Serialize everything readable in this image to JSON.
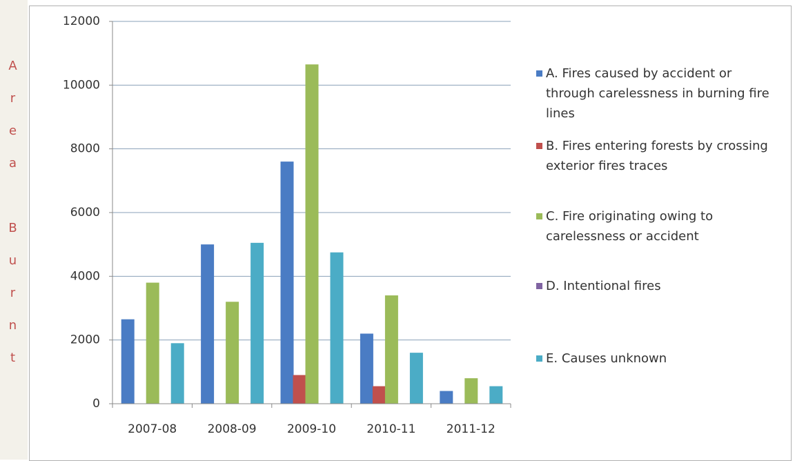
{
  "chart_data": {
    "type": "bar",
    "y_label": "Area Burnt",
    "categories": [
      "2007-08",
      "2008-09",
      "2009-10",
      "2010-11",
      "2011-12"
    ],
    "series": [
      {
        "name": "A. Fires caused by  accident or through carelessness  in burning fire lines",
        "color": "#4a7cc4",
        "values": [
          2650,
          5000,
          7600,
          2200,
          400
        ]
      },
      {
        "name": "B. Fires entering forests by crossing exterior fires  traces",
        "color": "#c0504d",
        "values": [
          0,
          0,
          900,
          550,
          0
        ]
      },
      {
        "name": "C. Fire originating owing to carelessness or accident",
        "color": "#9bbb59",
        "values": [
          3800,
          3200,
          10650,
          3400,
          800
        ]
      },
      {
        "name": "D. Intentional fires",
        "color": "#8064a2",
        "values": [
          0,
          0,
          0,
          0,
          0
        ]
      },
      {
        "name": "E. Causes unknown",
        "color": "#4bacc6",
        "values": [
          1900,
          5050,
          4750,
          1600,
          550
        ]
      }
    ],
    "ylim": [
      0,
      12000
    ],
    "yticks": [
      0,
      2000,
      4000,
      6000,
      8000,
      10000,
      12000
    ],
    "grid": true,
    "legend": "right"
  }
}
